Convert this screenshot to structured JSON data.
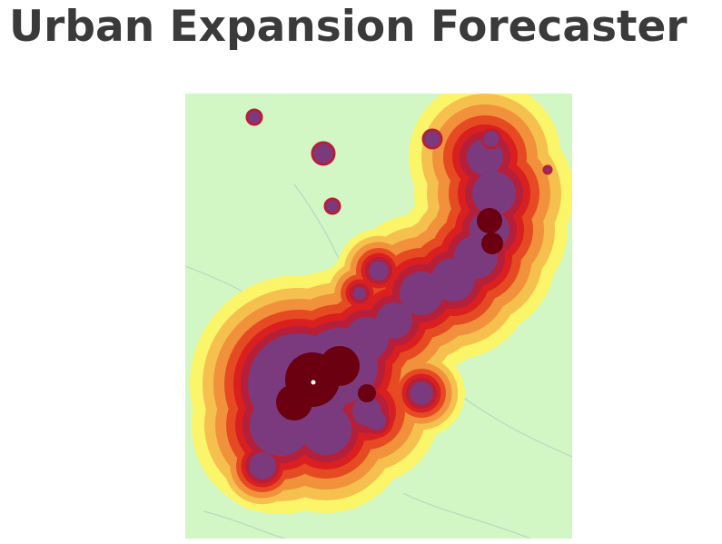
{
  "page": {
    "title": "Urban Expansion Forecaster"
  },
  "map": {
    "colors": {
      "background": "#d2f7c4",
      "buffer_outer": "#fbf56a",
      "buffer_2": "#f6c04f",
      "buffer_3": "#f1913b",
      "buffer_4": "#e64a22",
      "buffer_inner": "#d91f1f",
      "urban_edge": "#b51f3a",
      "urban_patch": "#7b3a7e",
      "urban_core": "#6a0010",
      "roads": "#b8d7c4"
    },
    "center_marker": "white-dot"
  }
}
